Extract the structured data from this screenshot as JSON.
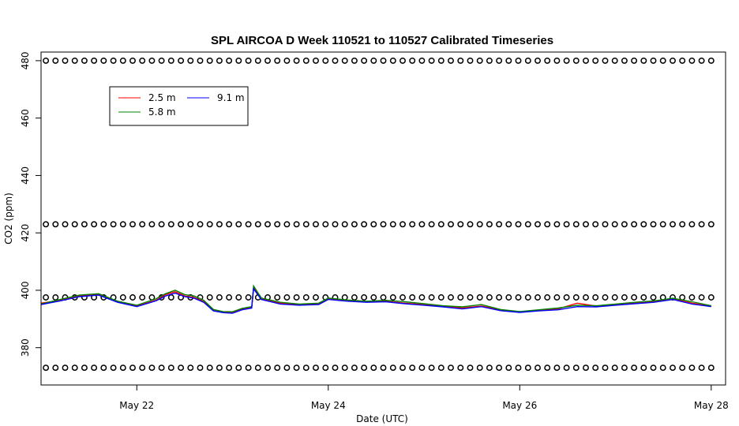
{
  "chart_data": {
    "type": "line",
    "title": "SPL AIRCOA D  Week 110521 to 110527  Calibrated Timeseries",
    "xlabel": "Date (UTC)",
    "ylabel": "CO2 (ppm)",
    "xlim": [
      21.0,
      28.15
    ],
    "ylim": [
      367,
      483
    ],
    "x_ticks": [
      {
        "value": 22,
        "label": "May 22"
      },
      {
        "value": 24,
        "label": "May 24"
      },
      {
        "value": 26,
        "label": "May 26"
      },
      {
        "value": 28,
        "label": "May 28"
      }
    ],
    "y_ticks": [
      380,
      400,
      420,
      440,
      460,
      480
    ],
    "legend_position": "top-left",
    "grid": false,
    "series": [
      {
        "name": "2.5 m",
        "color": "#ff0000",
        "x": [
          21.0,
          21.2,
          21.4,
          21.6,
          21.8,
          22.0,
          22.2,
          22.3,
          22.4,
          22.5,
          22.6,
          22.7,
          22.8,
          22.9,
          23.0,
          23.1,
          23.2,
          23.22,
          23.3,
          23.5,
          23.7,
          23.9,
          24.0,
          24.2,
          24.4,
          24.6,
          24.8,
          25.0,
          25.2,
          25.4,
          25.6,
          25.8,
          26.0,
          26.2,
          26.4,
          26.6,
          26.8,
          27.0,
          27.2,
          27.4,
          27.6,
          27.8,
          28.0
        ],
        "y": [
          395.5,
          396.5,
          398.0,
          398.5,
          396.0,
          394.5,
          396.5,
          398.5,
          399.5,
          398.0,
          397.5,
          396.0,
          393.0,
          392.5,
          392.3,
          393.5,
          394.0,
          401.0,
          397.0,
          395.5,
          395.0,
          395.3,
          397.0,
          396.5,
          396.0,
          396.2,
          395.5,
          395.0,
          394.5,
          393.8,
          394.5,
          393.2,
          392.5,
          393.0,
          393.5,
          395.5,
          394.5,
          395.0,
          395.5,
          396.0,
          397.0,
          395.5,
          394.5
        ]
      },
      {
        "name": "5.8 m",
        "color": "#008000",
        "x": [
          21.0,
          21.2,
          21.4,
          21.6,
          21.8,
          22.0,
          22.2,
          22.3,
          22.4,
          22.5,
          22.6,
          22.7,
          22.8,
          22.9,
          23.0,
          23.1,
          23.2,
          23.22,
          23.3,
          23.5,
          23.7,
          23.9,
          24.0,
          24.2,
          24.4,
          24.6,
          24.8,
          25.0,
          25.2,
          25.4,
          25.6,
          25.8,
          26.0,
          26.2,
          26.4,
          26.6,
          26.8,
          27.0,
          27.2,
          27.4,
          27.6,
          27.8,
          28.0
        ],
        "y": [
          395.2,
          396.8,
          398.3,
          398.8,
          396.2,
          394.8,
          397.0,
          398.8,
          400.0,
          398.5,
          398.0,
          396.5,
          393.3,
          392.6,
          392.5,
          393.7,
          394.3,
          401.5,
          397.3,
          395.8,
          395.2,
          395.5,
          397.3,
          396.6,
          396.2,
          396.5,
          396.0,
          395.3,
          394.6,
          394.2,
          395.0,
          393.3,
          392.6,
          393.2,
          393.8,
          394.8,
          394.6,
          395.2,
          395.8,
          396.3,
          397.2,
          396.0,
          394.6
        ]
      },
      {
        "name": "9.1 m",
        "color": "#0000ff",
        "x": [
          21.0,
          21.2,
          21.4,
          21.6,
          21.8,
          22.0,
          22.2,
          22.3,
          22.4,
          22.5,
          22.6,
          22.7,
          22.8,
          22.9,
          23.0,
          23.1,
          23.2,
          23.22,
          23.3,
          23.5,
          23.7,
          23.9,
          24.0,
          24.2,
          24.4,
          24.6,
          24.8,
          25.0,
          25.2,
          25.4,
          25.6,
          25.8,
          26.0,
          26.2,
          26.4,
          26.6,
          26.8,
          27.0,
          27.2,
          27.4,
          27.6,
          27.8,
          28.0
        ],
        "y": [
          395.0,
          396.3,
          397.8,
          398.3,
          395.8,
          394.3,
          396.3,
          398.0,
          399.0,
          397.8,
          397.2,
          395.8,
          392.8,
          392.2,
          392.0,
          393.2,
          393.8,
          400.5,
          396.8,
          395.2,
          394.8,
          395.0,
          396.8,
          396.2,
          395.8,
          396.0,
          395.3,
          394.8,
          394.2,
          393.5,
          394.3,
          392.9,
          392.3,
          392.8,
          393.2,
          394.3,
          394.2,
          394.8,
          395.3,
          395.8,
          396.8,
          395.2,
          394.3
        ]
      },
      {
        "name": "",
        "color": "#000000",
        "marker": "circle",
        "points_per_row": 70,
        "x_range": [
          21.05,
          28.0
        ],
        "levels_y": [
          373,
          397.5,
          423,
          480
        ]
      }
    ]
  }
}
